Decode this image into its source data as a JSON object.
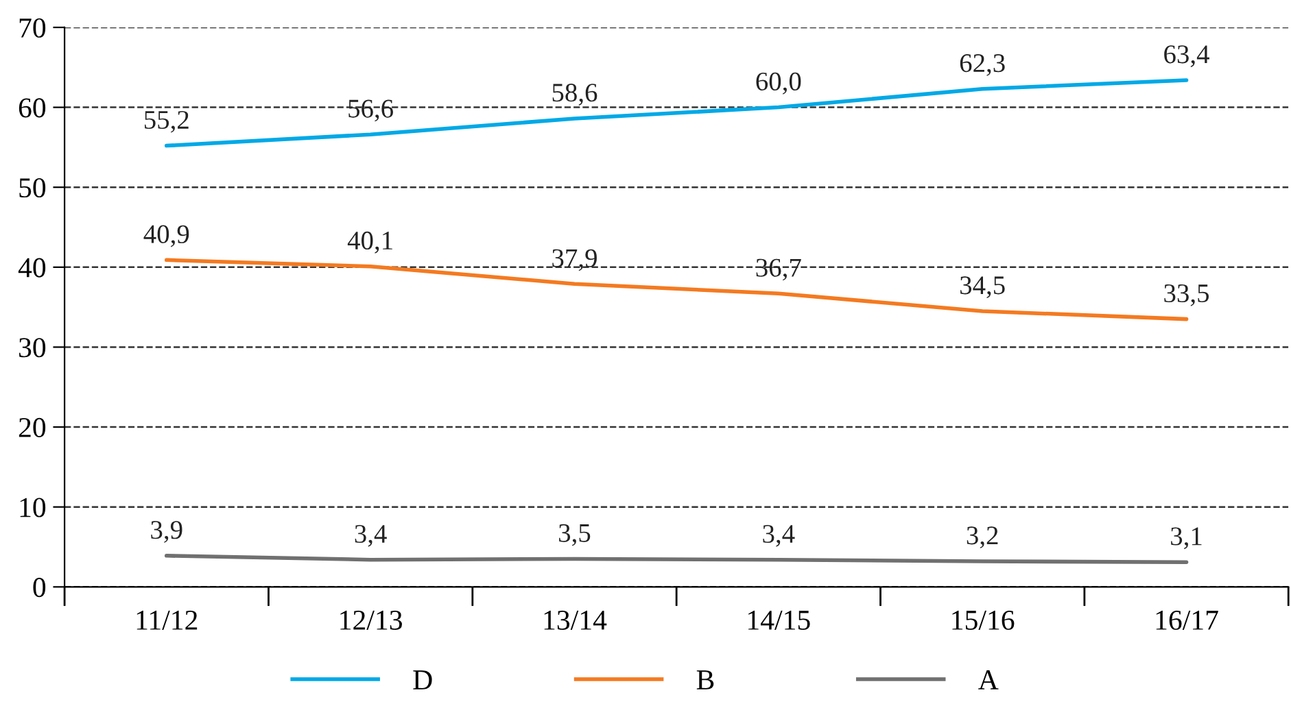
{
  "chart_data": {
    "type": "line",
    "categories": [
      "11/12",
      "12/13",
      "13/14",
      "14/15",
      "15/16",
      "16/17"
    ],
    "series": [
      {
        "name": "D",
        "color": "#00a9e6",
        "values": [
          55.2,
          56.6,
          58.6,
          60.0,
          62.3,
          63.4
        ],
        "value_labels": [
          "55,2",
          "56,6",
          "58,6",
          "60,0",
          "62,3",
          "63,4"
        ]
      },
      {
        "name": "B",
        "color": "#f47a20",
        "values": [
          40.9,
          40.1,
          37.9,
          36.7,
          34.5,
          33.5
        ],
        "value_labels": [
          "40,9",
          "40,1",
          "37,9",
          "36,7",
          "34,5",
          "33,5"
        ]
      },
      {
        "name": "A",
        "color": "#707070",
        "values": [
          3.9,
          3.4,
          3.5,
          3.4,
          3.2,
          3.1
        ],
        "value_labels": [
          "3,9",
          "3,4",
          "3,5",
          "3,4",
          "3,2",
          "3,1"
        ]
      }
    ],
    "ylim": [
      0,
      70
    ],
    "yticks": [
      0,
      10,
      20,
      30,
      40,
      50,
      60,
      70
    ],
    "grid": "y",
    "legend": "bottom",
    "marker": "none",
    "line_style": "solid"
  }
}
